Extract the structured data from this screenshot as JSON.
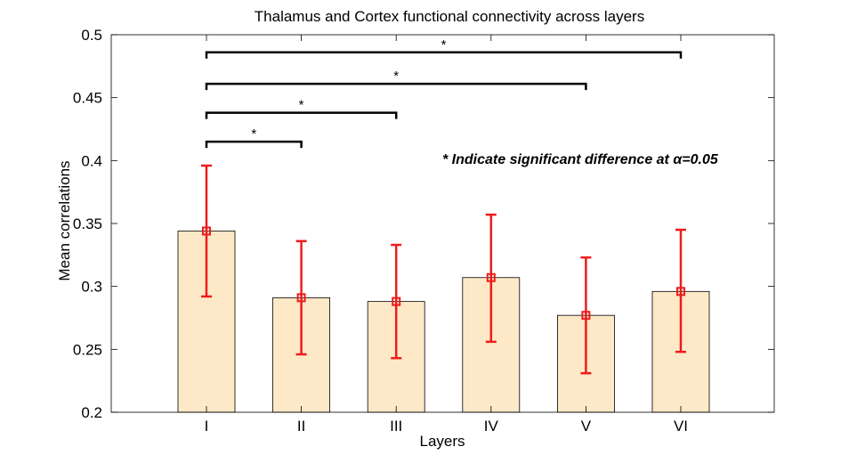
{
  "chart_data": {
    "type": "bar",
    "title": "Thalamus and Cortex functional connectivity across layers",
    "xlabel": "Layers",
    "ylabel": "Mean correlations",
    "categories": [
      "I",
      "II",
      "III",
      "IV",
      "V",
      "VI"
    ],
    "values": [
      0.344,
      0.291,
      0.288,
      0.307,
      0.277,
      0.296
    ],
    "error_low": [
      0.292,
      0.246,
      0.243,
      0.256,
      0.231,
      0.248
    ],
    "error_high": [
      0.396,
      0.336,
      0.333,
      0.357,
      0.323,
      0.345
    ],
    "ylim": [
      0.2,
      0.5
    ],
    "yticks": [
      "0.2",
      "0.25",
      "0.3",
      "0.35",
      "0.4",
      "0.45",
      "0.5"
    ],
    "grid": false,
    "bar_color": "#fde9c8",
    "error_color": "#ee1c1c",
    "annotation": "* Indicate significant difference at α=0.05",
    "significance": [
      {
        "from": "I",
        "to": "II",
        "y": 0.415,
        "label": "*"
      },
      {
        "from": "I",
        "to": "III",
        "y": 0.438,
        "label": "*"
      },
      {
        "from": "I",
        "to": "V",
        "y": 0.461,
        "label": "*"
      },
      {
        "from": "I",
        "to": "VI",
        "y": 0.486,
        "label": "*"
      }
    ]
  }
}
